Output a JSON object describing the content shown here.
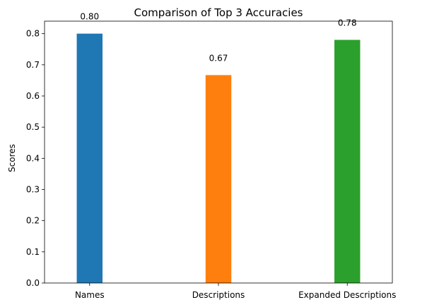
{
  "chart_data": {
    "type": "bar",
    "title": "Comparison of Top 3 Accuracies",
    "xlabel": "",
    "ylabel": "Scores",
    "categories": [
      "Names",
      "Descriptions",
      "Expanded Descriptions"
    ],
    "values": [
      0.8,
      0.667,
      0.78
    ],
    "value_labels": [
      "0.80",
      "0.67",
      "0.78"
    ],
    "colors": [
      "#1f77b4",
      "#ff7f0e",
      "#2ca02c"
    ],
    "ylim": [
      0,
      0.84
    ],
    "yticks": [
      0.0,
      0.1,
      0.2,
      0.3,
      0.4,
      0.5,
      0.6,
      0.7,
      0.8
    ],
    "ytick_labels": [
      "0.0",
      "0.1",
      "0.2",
      "0.3",
      "0.4",
      "0.5",
      "0.6",
      "0.7",
      "0.8"
    ],
    "grid": false,
    "legend": "none"
  }
}
